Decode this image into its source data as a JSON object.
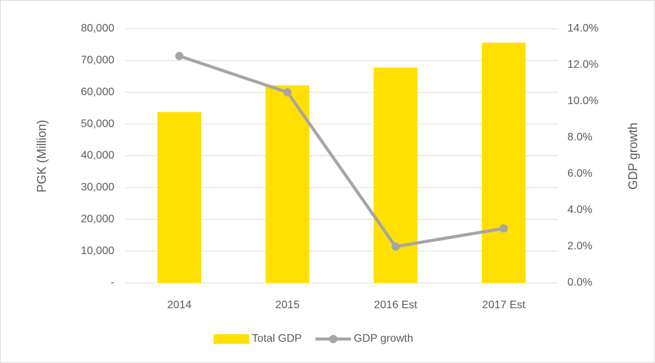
{
  "chart_data": {
    "type": "bar_line",
    "categories": [
      "2014",
      "2015",
      "2016 Est",
      "2017 Est"
    ],
    "series": [
      {
        "name": "Total GDP",
        "type": "bar",
        "color": "#ffe000",
        "values": [
          53800,
          62200,
          67800,
          75600
        ]
      },
      {
        "name": "GDP growth",
        "type": "line",
        "color": "#a5a5a5",
        "axis": "y2",
        "values": [
          12.5,
          10.5,
          2.0,
          3.0
        ]
      }
    ],
    "ylabel": "PGK (Million)",
    "y2label": "GDP growth",
    "ylim": [
      0,
      80000
    ],
    "yticks": [
      {
        "value": 0,
        "label": "-"
      },
      {
        "value": 10000,
        "label": "10,000"
      },
      {
        "value": 20000,
        "label": "20,000"
      },
      {
        "value": 30000,
        "label": "30,000"
      },
      {
        "value": 40000,
        "label": "40,000"
      },
      {
        "value": 50000,
        "label": "50,000"
      },
      {
        "value": 60000,
        "label": "60,000"
      },
      {
        "value": 70000,
        "label": "70,000"
      },
      {
        "value": 80000,
        "label": "80,000"
      }
    ],
    "y2lim": [
      0,
      14
    ],
    "y2ticks": [
      {
        "value": 0,
        "label": "0.0%"
      },
      {
        "value": 2,
        "label": "2.0%"
      },
      {
        "value": 4,
        "label": "4.0%"
      },
      {
        "value": 6,
        "label": "6.0%"
      },
      {
        "value": 8,
        "label": "8.0%"
      },
      {
        "value": 10,
        "label": "10.0%"
      },
      {
        "value": 12,
        "label": "12.0%"
      },
      {
        "value": 14,
        "label": "14.0%"
      }
    ],
    "grid": true,
    "legend": "bottom"
  }
}
